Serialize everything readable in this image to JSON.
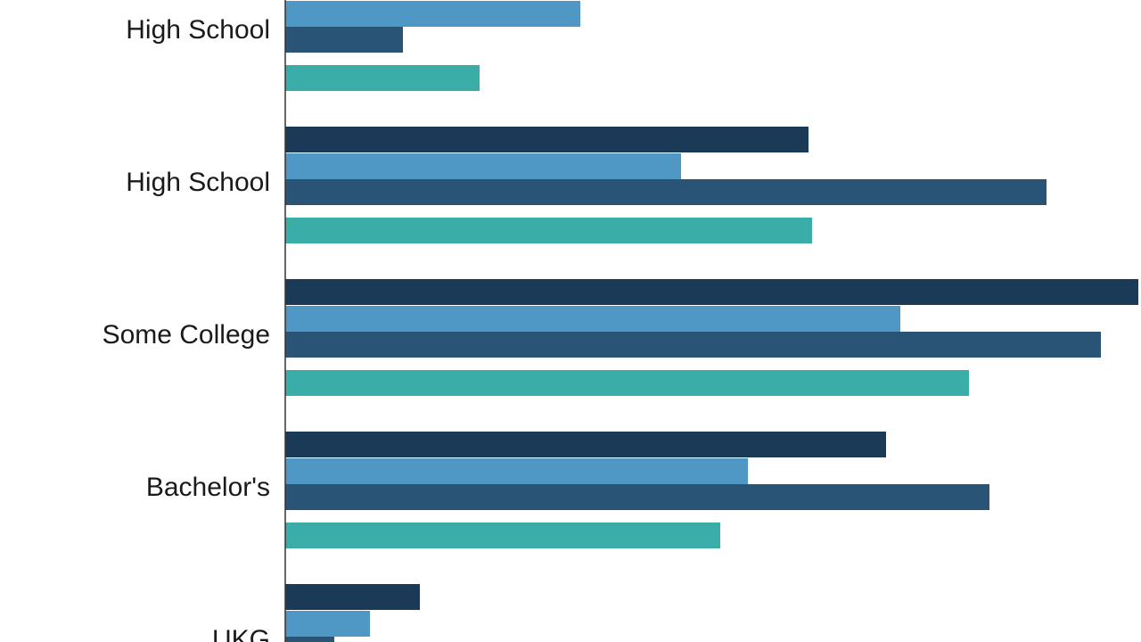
{
  "chart_data": {
    "type": "bar",
    "orientation": "horizontal",
    "categories": [
      "High School",
      "High School",
      "Some College",
      "Bachelor's",
      "UKG"
    ],
    "series": [
      {
        "color": "#1b3a57",
        "values": [
          null,
          587,
          957,
          674,
          151
        ]
      },
      {
        "color": "#4f97c4",
        "values": [
          331,
          444,
          690,
          519,
          95
        ]
      },
      {
        "color": "#2a5475",
        "values": [
          132,
          854,
          915,
          790,
          55
        ]
      },
      {
        "color": "#3aada8",
        "values": [
          218,
          591,
          767,
          488,
          null
        ]
      }
    ],
    "xlim": [
      0,
      960
    ]
  }
}
